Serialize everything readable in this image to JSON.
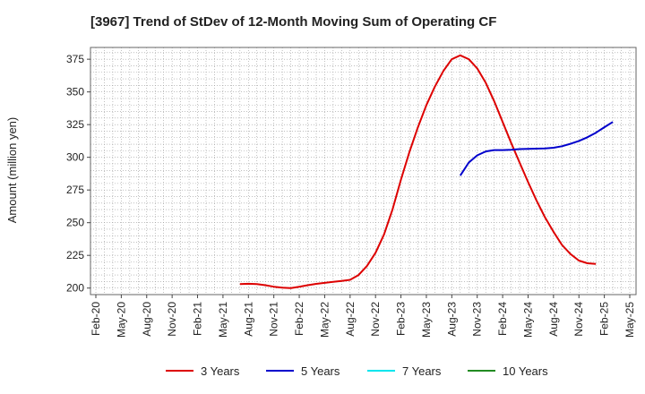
{
  "chart_data": {
    "type": "line",
    "title": "[3967]  Trend of StDev of 12-Month Moving Sum of Operating CF",
    "ylabel": "Amount (million yen)",
    "xlabel": "",
    "ylim": [
      195,
      384
    ],
    "yticks": [
      200,
      225,
      250,
      275,
      300,
      325,
      350,
      375
    ],
    "xtick_labels": [
      "Feb-20",
      "May-20",
      "Aug-20",
      "Nov-20",
      "Feb-21",
      "May-21",
      "Aug-21",
      "Nov-21",
      "Feb-22",
      "May-22",
      "Aug-22",
      "Nov-22",
      "Feb-23",
      "May-23",
      "Aug-23",
      "Nov-23",
      "Feb-24",
      "May-24",
      "Aug-24",
      "Nov-24",
      "Feb-25",
      "May-25"
    ],
    "grid": true,
    "legend_position": "bottom",
    "series": [
      {
        "name": "3 Years",
        "color": "#dd0000",
        "start_month_index": 17,
        "values": [
          203,
          203.3,
          203,
          202.2,
          201,
          200.3,
          200,
          201,
          202.2,
          203.2,
          204,
          204.8,
          205.5,
          206.3,
          210,
          217,
          227,
          241,
          260,
          283,
          304,
          323,
          340,
          354,
          366,
          375,
          378,
          375,
          368,
          357,
          343,
          327,
          311,
          296,
          281,
          267,
          254,
          243,
          233,
          226,
          221,
          219,
          218.5
        ]
      },
      {
        "name": "5 Years",
        "color": "#0000cc",
        "start_month_index": 43,
        "values": [
          286,
          296,
          301.5,
          304.5,
          305.5,
          305.5,
          305.8,
          306.3,
          306.5,
          306.6,
          306.8,
          307.3,
          308.5,
          310.3,
          312.5,
          315.3,
          318.8,
          323,
          327
        ]
      },
      {
        "name": "7 Years",
        "color": "#00e5ee",
        "start_month_index": 0,
        "values": []
      },
      {
        "name": "10 Years",
        "color": "#228b22",
        "start_month_index": 0,
        "values": []
      }
    ]
  }
}
